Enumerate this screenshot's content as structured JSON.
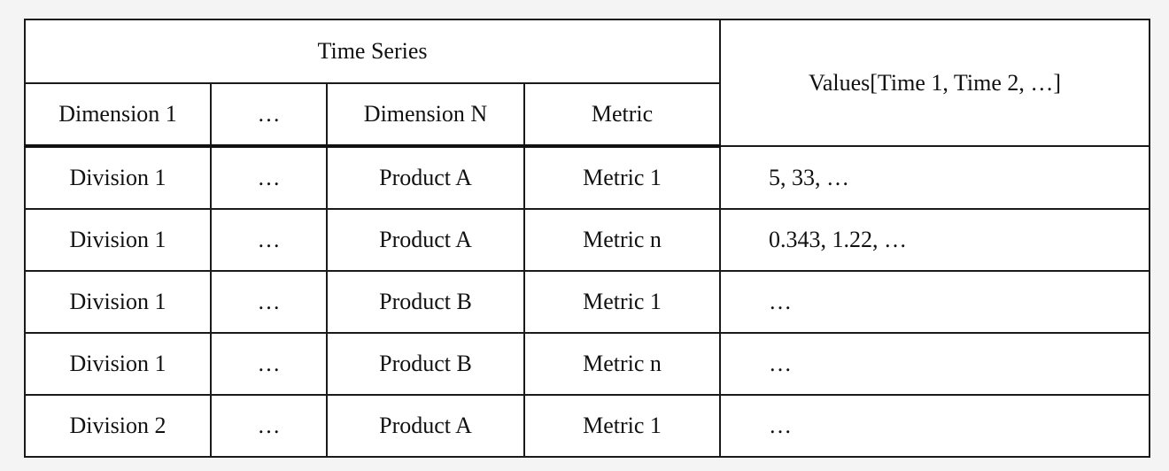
{
  "table": {
    "group_header": "Time Series",
    "values_header": "Values[Time 1, Time 2, …]",
    "columns": [
      "Dimension 1",
      "…",
      "Dimension N",
      "Metric"
    ],
    "rows": [
      {
        "dim1": "Division 1",
        "ellipsis": "…",
        "dimN": "Product A",
        "metric": "Metric 1",
        "values": "5, 33, …"
      },
      {
        "dim1": "Division 1",
        "ellipsis": "…",
        "dimN": "Product A",
        "metric": "Metric n",
        "values": "0.343, 1.22, …"
      },
      {
        "dim1": "Division 1",
        "ellipsis": "…",
        "dimN": "Product B",
        "metric": "Metric 1",
        "values": "…"
      },
      {
        "dim1": "Division 1",
        "ellipsis": "…",
        "dimN": "Product B",
        "metric": "Metric n",
        "values": "…"
      },
      {
        "dim1": "Division 2",
        "ellipsis": "…",
        "dimN": "Product A",
        "metric": "Metric 1",
        "values": "…"
      }
    ]
  }
}
